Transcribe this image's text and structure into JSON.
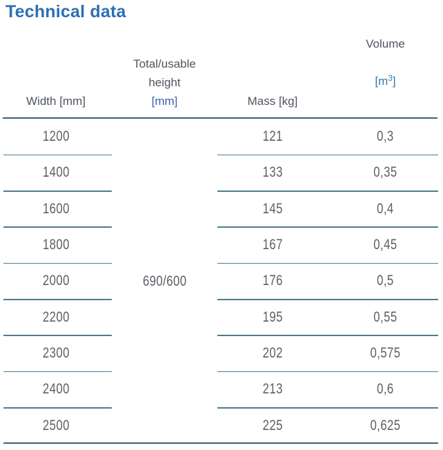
{
  "title": "Technical data",
  "table": {
    "headers": {
      "width": "Width [mm]",
      "height_line1": "Total/usable",
      "height_line2": "height",
      "height_unit": "[mm]",
      "mass": "Mass [kg]",
      "volume": "Volume",
      "volume_unit_open": "[m",
      "volume_unit_sup": "3",
      "volume_unit_close": "]"
    },
    "shared_height_value": "690/600",
    "rows": [
      {
        "width": "1200",
        "mass": "121",
        "volume": "0,3"
      },
      {
        "width": "1400",
        "mass": "133",
        "volume": "0,35"
      },
      {
        "width": "1600",
        "mass": "145",
        "volume": "0,4"
      },
      {
        "width": "1800",
        "mass": "167",
        "volume": "0,45"
      },
      {
        "width": "2000",
        "mass": "176",
        "volume": "0,5"
      },
      {
        "width": "2200",
        "mass": "195",
        "volume": "0,55"
      },
      {
        "width": "2300",
        "mass": "202",
        "volume": "0,575"
      },
      {
        "width": "2400",
        "mass": "213",
        "volume": "0,6"
      },
      {
        "width": "2500",
        "mass": "225",
        "volume": "0,625"
      }
    ]
  },
  "colors": {
    "title_blue": "#2d6fb5",
    "unit_blue": "#3a63ab",
    "volume_unit_blue": "#2f79a8",
    "header_text": "#4d5560",
    "data_text": "#5a6066",
    "rule_dark": "#3f6076",
    "rule_light": "#4f7a90"
  }
}
